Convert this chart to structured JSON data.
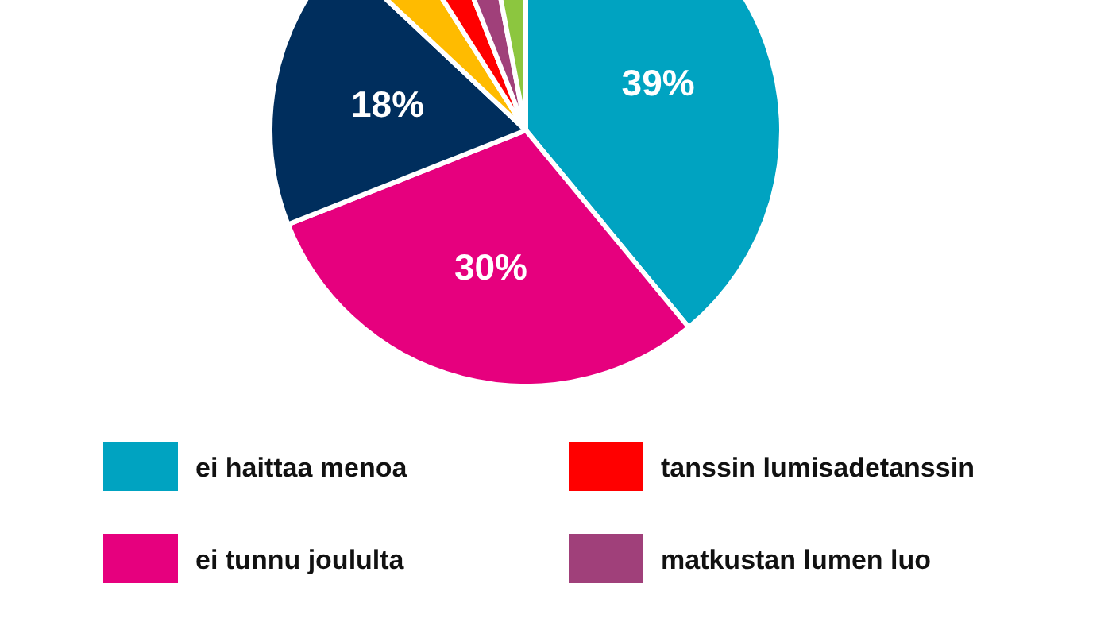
{
  "chart_data": {
    "type": "pie",
    "categories": [
      "ei haittaa menoa",
      "ei tunnu joululta",
      null,
      null,
      "tanssin lumisadetanssin",
      "matkustan lumen luo",
      null
    ],
    "values": [
      39,
      30,
      18,
      4,
      3,
      3,
      3
    ],
    "colors": [
      "#00a3c1",
      "#e6007e",
      "#002e5d",
      "#ffbb00",
      "#ff0000",
      "#a0407a",
      "#8cc63f"
    ],
    "value_labels": [
      "39%",
      "30%",
      "18%",
      null,
      null,
      null,
      null
    ],
    "legend": "bottom"
  }
}
